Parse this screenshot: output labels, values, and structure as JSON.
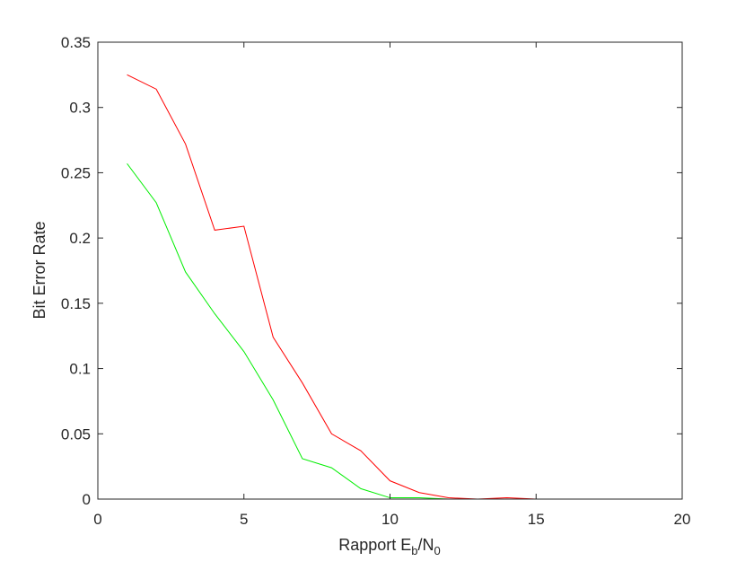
{
  "chart_data": {
    "type": "line",
    "title": "",
    "xlabel": {
      "main": "Rapport E",
      "sub1": "b",
      "sep": "/N",
      "sub2": "0"
    },
    "ylabel": "Bit Error Rate",
    "xlim": [
      0,
      20
    ],
    "ylim": [
      0,
      0.35
    ],
    "xticks": [
      0,
      5,
      10,
      15,
      20
    ],
    "xtick_labels": [
      "0",
      "5",
      "10",
      "15",
      "20"
    ],
    "yticks": [
      0,
      0.05,
      0.1,
      0.15,
      0.2,
      0.25,
      0.3,
      0.35
    ],
    "ytick_labels": [
      "0",
      "0.05",
      "0.1",
      "0.15",
      "0.2",
      "0.25",
      "0.3",
      "0.35"
    ],
    "grid": false,
    "legend": "none",
    "x": [
      1,
      2,
      3,
      4,
      5,
      6,
      7,
      8,
      9,
      10,
      11,
      12,
      13,
      14,
      15,
      16,
      17,
      18,
      19,
      20
    ],
    "series": [
      {
        "color": "#ff0000",
        "values": [
          0.325,
          0.314,
          0.272,
          0.206,
          0.209,
          0.124,
          0.089,
          0.05,
          0.037,
          0.014,
          0.005,
          0.001,
          0.0,
          0.001,
          0.0,
          0.0,
          0.0,
          0.0,
          0.0,
          0.0
        ]
      },
      {
        "color": "#00ee00",
        "values": [
          0.257,
          0.227,
          0.174,
          0.142,
          0.113,
          0.076,
          0.031,
          0.024,
          0.008,
          0.001,
          0.001,
          0.0,
          0.0,
          0.0,
          0.0,
          0.0,
          0.0,
          0.0,
          0.0,
          0.0
        ]
      }
    ]
  }
}
